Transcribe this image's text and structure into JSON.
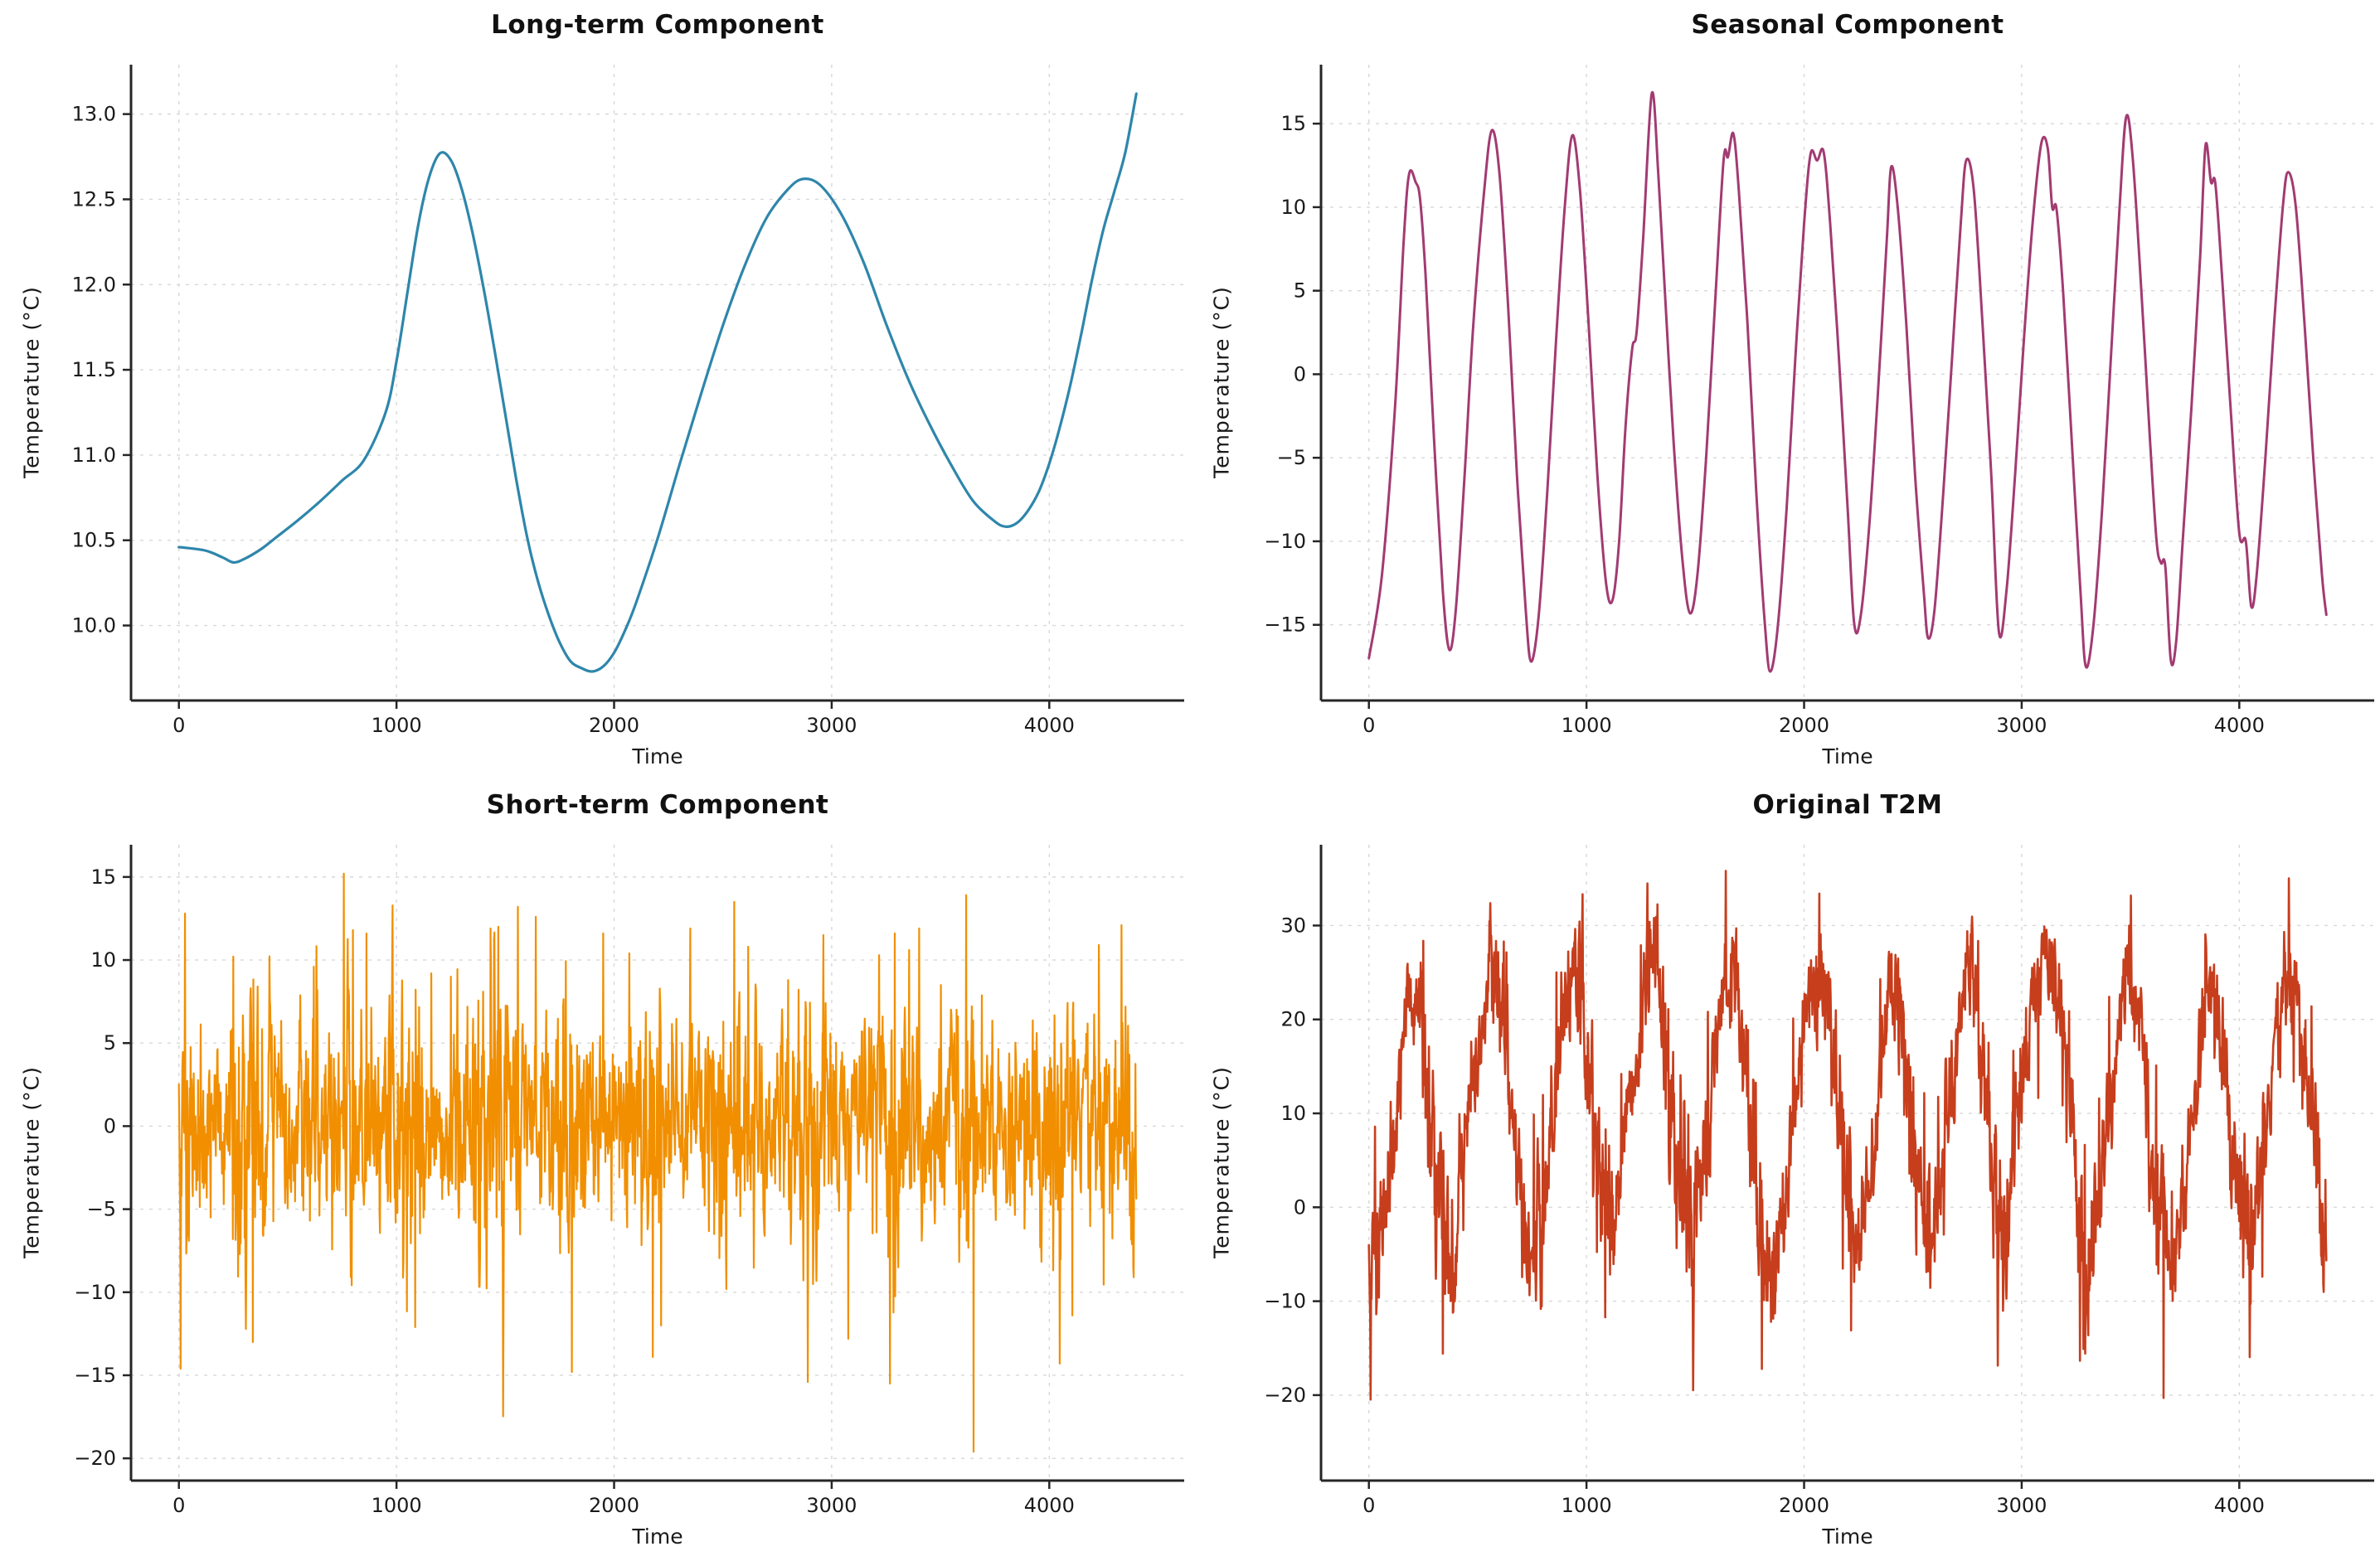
{
  "chart_data": [
    {
      "id": "long-term",
      "type": "line",
      "title": "Long-term Component",
      "xlabel": "Time",
      "ylabel": "Temperature (°C)",
      "color": "#2E86AB",
      "line_width": 3.2,
      "smooth": true,
      "grid": true,
      "legend": "none",
      "xlim": [
        -220,
        4620
      ],
      "ylim": [
        9.56,
        13.29
      ],
      "xticks": [
        0,
        1000,
        2000,
        3000,
        4000
      ],
      "xtick_labels": [
        "0",
        "1000",
        "2000",
        "3000",
        "4000"
      ],
      "yticks": [
        10.0,
        10.5,
        11.0,
        11.5,
        12.0,
        12.5,
        13.0
      ],
      "ytick_labels": [
        "10.0",
        "10.5",
        "11.0",
        "11.5",
        "12.0",
        "12.5",
        "13.0"
      ],
      "observed_range": {
        "y_min": 9.73,
        "y_max": 13.12,
        "x_min": 0,
        "x_max": 4400
      },
      "points": [
        [
          0,
          10.46
        ],
        [
          120,
          10.44
        ],
        [
          200,
          10.4
        ],
        [
          250,
          10.37
        ],
        [
          300,
          10.39
        ],
        [
          380,
          10.45
        ],
        [
          450,
          10.52
        ],
        [
          550,
          10.62
        ],
        [
          650,
          10.73
        ],
        [
          750,
          10.85
        ],
        [
          850,
          10.97
        ],
        [
          950,
          11.25
        ],
        [
          1000,
          11.55
        ],
        [
          1050,
          11.95
        ],
        [
          1100,
          12.35
        ],
        [
          1150,
          12.63
        ],
        [
          1200,
          12.77
        ],
        [
          1250,
          12.73
        ],
        [
          1300,
          12.56
        ],
        [
          1350,
          12.3
        ],
        [
          1400,
          11.98
        ],
        [
          1450,
          11.62
        ],
        [
          1500,
          11.24
        ],
        [
          1550,
          10.86
        ],
        [
          1600,
          10.52
        ],
        [
          1650,
          10.26
        ],
        [
          1700,
          10.06
        ],
        [
          1750,
          9.9
        ],
        [
          1800,
          9.79
        ],
        [
          1850,
          9.75
        ],
        [
          1900,
          9.73
        ],
        [
          1950,
          9.76
        ],
        [
          2000,
          9.84
        ],
        [
          2050,
          9.97
        ],
        [
          2100,
          10.13
        ],
        [
          2200,
          10.51
        ],
        [
          2300,
          10.94
        ],
        [
          2400,
          11.36
        ],
        [
          2500,
          11.76
        ],
        [
          2600,
          12.11
        ],
        [
          2700,
          12.39
        ],
        [
          2800,
          12.56
        ],
        [
          2870,
          12.62
        ],
        [
          2950,
          12.58
        ],
        [
          3050,
          12.4
        ],
        [
          3150,
          12.12
        ],
        [
          3250,
          11.77
        ],
        [
          3350,
          11.45
        ],
        [
          3450,
          11.18
        ],
        [
          3550,
          10.94
        ],
        [
          3650,
          10.73
        ],
        [
          3750,
          10.61
        ],
        [
          3800,
          10.58
        ],
        [
          3850,
          10.6
        ],
        [
          3900,
          10.67
        ],
        [
          3950,
          10.78
        ],
        [
          4000,
          10.95
        ],
        [
          4050,
          11.17
        ],
        [
          4100,
          11.43
        ],
        [
          4150,
          11.73
        ],
        [
          4200,
          12.05
        ],
        [
          4250,
          12.33
        ],
        [
          4300,
          12.55
        ],
        [
          4350,
          12.78
        ],
        [
          4400,
          13.12
        ]
      ]
    },
    {
      "id": "seasonal",
      "type": "line",
      "title": "Seasonal Component",
      "xlabel": "Time",
      "ylabel": "Temperature (°C)",
      "color": "#A23B72",
      "line_width": 3.0,
      "smooth": true,
      "grid": true,
      "legend": "none",
      "xlim": [
        -220,
        4620
      ],
      "ylim": [
        -19.53,
        18.53
      ],
      "xticks": [
        0,
        1000,
        2000,
        3000,
        4000
      ],
      "xtick_labels": [
        "0",
        "1000",
        "2000",
        "3000",
        "4000"
      ],
      "yticks": [
        -15,
        -10,
        -5,
        0,
        5,
        10,
        15
      ],
      "ytick_labels": [
        "−15",
        "−10",
        "−5",
        "0",
        "5",
        "10",
        "15"
      ],
      "observed_range": {
        "y_min": -17.8,
        "y_max": 16.8,
        "x_min": 0,
        "x_max": 4400
      },
      "period": 365,
      "points": [
        [
          0,
          -17.0
        ],
        [
          60,
          -12.0
        ],
        [
          120,
          -2.0
        ],
        [
          160,
          8.0
        ],
        [
          185,
          12.0
        ],
        [
          215,
          11.5
        ],
        [
          235,
          10.5
        ],
        [
          260,
          6.0
        ],
        [
          300,
          -4.0
        ],
        [
          340,
          -13.0
        ],
        [
          370,
          -16.5
        ],
        [
          400,
          -14.0
        ],
        [
          440,
          -6.0
        ],
        [
          480,
          3.0
        ],
        [
          530,
          11.0
        ],
        [
          565,
          14.6
        ],
        [
          600,
          12.0
        ],
        [
          640,
          4.0
        ],
        [
          680,
          -6.0
        ],
        [
          720,
          -14.0
        ],
        [
          745,
          -17.2
        ],
        [
          780,
          -14.5
        ],
        [
          820,
          -7.0
        ],
        [
          860,
          2.0
        ],
        [
          900,
          10.0
        ],
        [
          935,
          14.3
        ],
        [
          970,
          11.0
        ],
        [
          1010,
          3.0
        ],
        [
          1050,
          -6.0
        ],
        [
          1090,
          -12.5
        ],
        [
          1120,
          -13.5
        ],
        [
          1150,
          -10.0
        ],
        [
          1180,
          -3.0
        ],
        [
          1210,
          1.5
        ],
        [
          1230,
          2.5
        ],
        [
          1260,
          8.0
        ],
        [
          1300,
          16.8
        ],
        [
          1330,
          12.0
        ],
        [
          1360,
          5.0
        ],
        [
          1400,
          -4.0
        ],
        [
          1440,
          -11.0
        ],
        [
          1475,
          -14.3
        ],
        [
          1510,
          -12.0
        ],
        [
          1550,
          -5.0
        ],
        [
          1590,
          4.0
        ],
        [
          1630,
          12.8
        ],
        [
          1650,
          13.0
        ],
        [
          1675,
          14.4
        ],
        [
          1700,
          11.0
        ],
        [
          1740,
          3.0
        ],
        [
          1780,
          -7.0
        ],
        [
          1820,
          -15.0
        ],
        [
          1845,
          -17.8
        ],
        [
          1880,
          -15.0
        ],
        [
          1920,
          -8.0
        ],
        [
          1960,
          1.0
        ],
        [
          2000,
          9.0
        ],
        [
          2030,
          13.2
        ],
        [
          2060,
          12.8
        ],
        [
          2090,
          13.3
        ],
        [
          2120,
          9.0
        ],
        [
          2160,
          1.0
        ],
        [
          2200,
          -8.0
        ],
        [
          2230,
          -14.9
        ],
        [
          2260,
          -14.5
        ],
        [
          2300,
          -9.0
        ],
        [
          2340,
          -1.0
        ],
        [
          2380,
          8.0
        ],
        [
          2400,
          12.4
        ],
        [
          2430,
          10.0
        ],
        [
          2470,
          3.0
        ],
        [
          2510,
          -6.0
        ],
        [
          2550,
          -13.0
        ],
        [
          2570,
          -15.8
        ],
        [
          2600,
          -14.0
        ],
        [
          2640,
          -7.0
        ],
        [
          2680,
          1.0
        ],
        [
          2720,
          9.0
        ],
        [
          2745,
          12.8
        ],
        [
          2780,
          11.0
        ],
        [
          2820,
          3.0
        ],
        [
          2860,
          -6.0
        ],
        [
          2895,
          -15.4
        ],
        [
          2930,
          -13.0
        ],
        [
          2970,
          -6.0
        ],
        [
          3010,
          2.0
        ],
        [
          3050,
          9.0
        ],
        [
          3090,
          13.8
        ],
        [
          3120,
          13.5
        ],
        [
          3140,
          10.0
        ],
        [
          3160,
          9.9
        ],
        [
          3190,
          5.0
        ],
        [
          3230,
          -4.0
        ],
        [
          3270,
          -13.0
        ],
        [
          3295,
          -17.5
        ],
        [
          3330,
          -15.0
        ],
        [
          3370,
          -8.0
        ],
        [
          3410,
          1.0
        ],
        [
          3450,
          10.0
        ],
        [
          3480,
          15.4
        ],
        [
          3510,
          13.0
        ],
        [
          3550,
          5.0
        ],
        [
          3590,
          -4.0
        ],
        [
          3620,
          -10.0
        ],
        [
          3640,
          -11.3
        ],
        [
          3660,
          -11.5
        ],
        [
          3685,
          -17.1
        ],
        [
          3710,
          -16.0
        ],
        [
          3740,
          -10.0
        ],
        [
          3780,
          -2.0
        ],
        [
          3820,
          7.0
        ],
        [
          3845,
          13.7
        ],
        [
          3870,
          11.5
        ],
        [
          3890,
          11.4
        ],
        [
          3920,
          6.0
        ],
        [
          3960,
          -2.0
        ],
        [
          4000,
          -9.5
        ],
        [
          4030,
          -10.0
        ],
        [
          4055,
          -13.9
        ],
        [
          4080,
          -12.0
        ],
        [
          4120,
          -5.0
        ],
        [
          4160,
          3.0
        ],
        [
          4200,
          10.0
        ],
        [
          4225,
          12.1
        ],
        [
          4260,
          10.0
        ],
        [
          4300,
          3.0
        ],
        [
          4340,
          -5.0
        ],
        [
          4380,
          -12.0
        ],
        [
          4400,
          -14.4
        ]
      ]
    },
    {
      "id": "short-term",
      "type": "noisy_line",
      "title": "Short-term Component",
      "xlabel": "Time",
      "ylabel": "Temperature (°C)",
      "color": "#F18F01",
      "line_width": 2.2,
      "smooth": false,
      "grid": true,
      "legend": "none",
      "xlim": [
        -220,
        4620
      ],
      "ylim": [
        -21.34,
        16.94
      ],
      "xticks": [
        0,
        1000,
        2000,
        3000,
        4000
      ],
      "xtick_labels": [
        "0",
        "1000",
        "2000",
        "3000",
        "4000"
      ],
      "yticks": [
        -20,
        -15,
        -10,
        -5,
        0,
        5,
        10,
        15
      ],
      "ytick_labels": [
        "−20",
        "−15",
        "−10",
        "−5",
        "0",
        "5",
        "10",
        "15"
      ],
      "observed_range": {
        "y_min": -19.6,
        "y_max": 15.2,
        "x_min": 0,
        "x_max": 4400
      },
      "noise": {
        "seed": 1337,
        "step": 2,
        "ar": 0.42,
        "sigma": 3.1,
        "amp_seasonal": 0.22,
        "amp_phase": 2.0,
        "period": 365,
        "clamp_min": -19.8,
        "clamp_max": 15.4,
        "n_max": 4400
      },
      "spikes": [
        [
          8,
          -14.6
        ],
        [
          28,
          12.8
        ],
        [
          250,
          10.2
        ],
        [
          340,
          -13.0
        ],
        [
          620,
          9.6
        ],
        [
          758,
          15.2
        ],
        [
          800,
          11.8
        ],
        [
          862,
          11.6
        ],
        [
          1085,
          -12.1
        ],
        [
          1160,
          9.2
        ],
        [
          1250,
          9.0
        ],
        [
          1432,
          11.9
        ],
        [
          1468,
          12.0
        ],
        [
          1558,
          13.2
        ],
        [
          1640,
          12.6
        ],
        [
          1805,
          -14.8
        ],
        [
          1950,
          11.6
        ],
        [
          2070,
          10.4
        ],
        [
          2178,
          -13.9
        ],
        [
          2215,
          -12.0
        ],
        [
          2350,
          11.9
        ],
        [
          2552,
          13.5
        ],
        [
          2615,
          10.8
        ],
        [
          2890,
          -15.4
        ],
        [
          2962,
          11.5
        ],
        [
          3075,
          -12.8
        ],
        [
          3268,
          -15.5
        ],
        [
          3290,
          11.6
        ],
        [
          3355,
          10.6
        ],
        [
          3402,
          11.9
        ],
        [
          3618,
          13.9
        ],
        [
          3652,
          -19.6
        ],
        [
          4048,
          -14.3
        ],
        [
          4105,
          -11.4
        ],
        [
          4228,
          10.9
        ],
        [
          4332,
          12.1
        ]
      ]
    },
    {
      "id": "original-t2m",
      "type": "sum_line",
      "title": "Original T2M",
      "xlabel": "Time",
      "ylabel": "Temperature (°C)",
      "color": "#C73E1D",
      "line_width": 2.6,
      "smooth": false,
      "grid": true,
      "legend": "none",
      "components": [
        "long-term",
        "seasonal",
        "short-term"
      ],
      "xlim": [
        -220,
        4620
      ],
      "ylim": [
        -29.1,
        38.6
      ],
      "xticks": [
        0,
        1000,
        2000,
        3000,
        4000
      ],
      "xtick_labels": [
        "0",
        "1000",
        "2000",
        "3000",
        "4000"
      ],
      "yticks": [
        -20,
        -10,
        0,
        10,
        20,
        30
      ],
      "ytick_labels": [
        "−20",
        "−10",
        "0",
        "10",
        "20",
        "30"
      ],
      "observed_range": {
        "y_min": -26.0,
        "y_max": 35.5,
        "x_min": 0,
        "x_max": 4400
      }
    }
  ],
  "style": {
    "background": "#ffffff",
    "grid_color": "#d8d8d8",
    "spine_color": "#262626",
    "tick_label_color": "#1a1a1a",
    "title_color": "#111111"
  }
}
